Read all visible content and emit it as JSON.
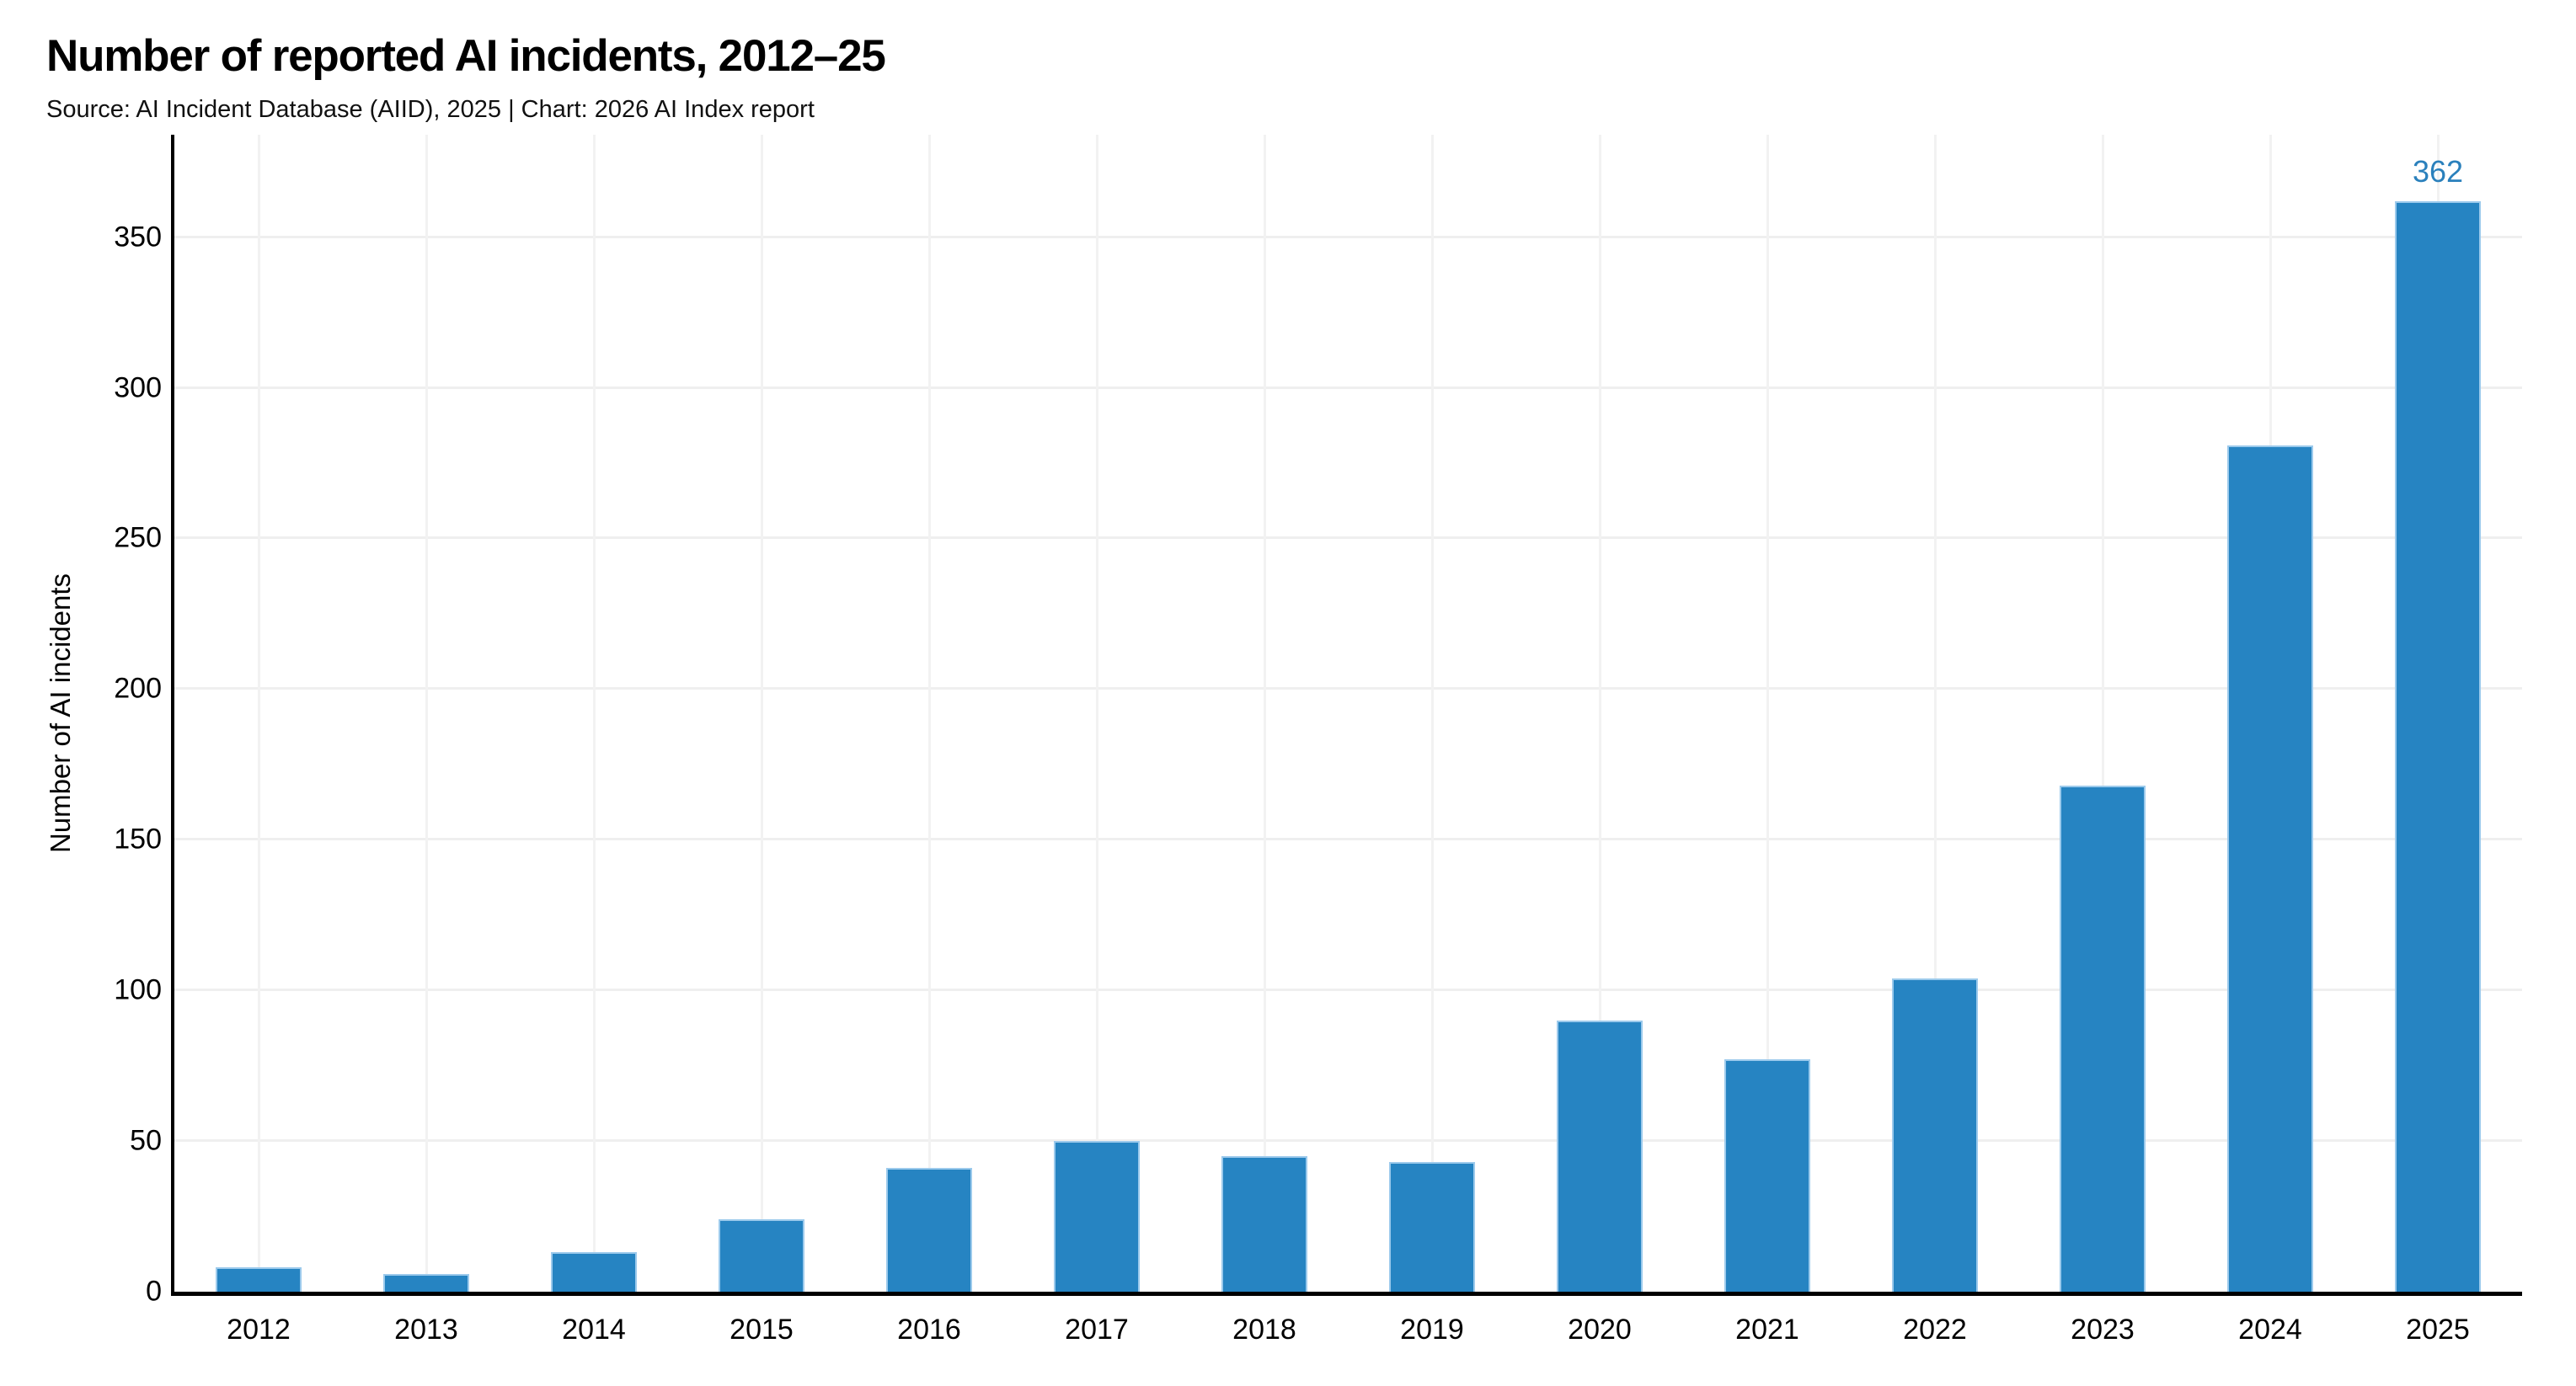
{
  "header": {
    "title": "Number of reported AI incidents, 2012–25",
    "source_line": "Source: AI Incident Database (AIID), 2025 | Chart: 2026 AI Index report"
  },
  "chart_data": {
    "type": "bar",
    "title": "Number of reported AI incidents, 2012–25",
    "categories": [
      "2012",
      "2013",
      "2014",
      "2015",
      "2016",
      "2017",
      "2018",
      "2019",
      "2020",
      "2021",
      "2022",
      "2023",
      "2024",
      "2025"
    ],
    "values": [
      8,
      6,
      13,
      24,
      41,
      50,
      45,
      43,
      90,
      77,
      104,
      168,
      281,
      362
    ],
    "xlabel": "",
    "ylabel": "Number of AI incidents",
    "ylim": [
      0,
      384
    ],
    "yticks": [
      0,
      50,
      100,
      150,
      200,
      250,
      300,
      350
    ],
    "grid": {
      "horizontal": true,
      "vertical": true,
      "h_color": "#efefef",
      "v_color": "#f2f2f2"
    },
    "legend_position": "none",
    "bar_color": "#2684c2",
    "bar_edge_color": "#9ccaec",
    "axis_color": "#000000",
    "bar_width_fraction": 0.512,
    "value_labels": [
      {
        "category": "2025",
        "text": "362",
        "color": "#2a80bc"
      }
    ]
  }
}
